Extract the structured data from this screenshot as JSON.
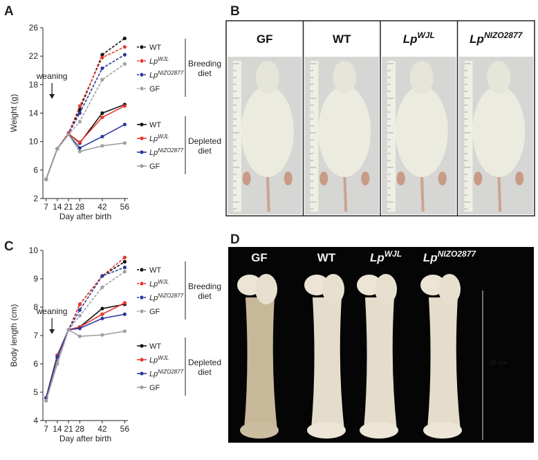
{
  "chart_data": [
    {
      "type": "line",
      "panel_label": "A",
      "y_label": "Weight (g)",
      "x_label": "Day after birth",
      "annotation": "weaning",
      "x": [
        7,
        14,
        21,
        28,
        42,
        56
      ],
      "xlim": [
        5,
        58
      ],
      "xticks": [
        7,
        14,
        21,
        28,
        42,
        56
      ],
      "ylim": [
        2,
        26
      ],
      "yticks": [
        2,
        6,
        10,
        14,
        18,
        22,
        26
      ],
      "legend_groups": [
        {
          "label_lines": [
            "Breeding",
            "diet"
          ]
        },
        {
          "label_lines": [
            "Depleted",
            "diet"
          ]
        }
      ],
      "series": [
        {
          "name": "WT",
          "color": "#111111",
          "dashed": true,
          "values": [
            4.7,
            9.0,
            11.2,
            14.5,
            22.2,
            24.5
          ]
        },
        {
          "name": "Lp",
          "name_sup": "WJL",
          "color": "#e8372c",
          "dashed": true,
          "values": [
            4.7,
            9.0,
            11.2,
            15.0,
            21.8,
            23.3
          ]
        },
        {
          "name": "Lp",
          "name_sup": "NIZO2877",
          "color": "#2b3a9c",
          "dashed": true,
          "values": [
            4.7,
            9.0,
            11.1,
            14.0,
            20.3,
            22.2
          ]
        },
        {
          "name": "GF",
          "color": "#a0a0a0",
          "dashed": true,
          "values": [
            4.7,
            9.0,
            11.0,
            12.8,
            18.7,
            20.9
          ]
        },
        {
          "name": "WT",
          "color": "#111111",
          "dashed": false,
          "values": [
            4.7,
            9.0,
            11.1,
            9.8,
            14.0,
            15.2
          ]
        },
        {
          "name": "Lp",
          "name_sup": "WJL",
          "color": "#e8372c",
          "dashed": false,
          "values": [
            4.7,
            9.0,
            11.1,
            9.9,
            13.4,
            15.0
          ]
        },
        {
          "name": "Lp",
          "name_sup": "NIZO2877",
          "color": "#2b3a9c",
          "dashed": false,
          "values": [
            4.7,
            9.0,
            11.0,
            9.1,
            10.7,
            12.4
          ]
        },
        {
          "name": "GF",
          "color": "#a0a0a0",
          "dashed": false,
          "values": [
            4.7,
            9.0,
            11.0,
            8.6,
            9.4,
            9.8
          ]
        }
      ]
    },
    {
      "type": "line",
      "panel_label": "C",
      "y_label": "Body length (cm)",
      "x_label": "Day after birth",
      "annotation": "weaning",
      "x": [
        7,
        14,
        21,
        28,
        42,
        56
      ],
      "xlim": [
        5,
        58
      ],
      "xticks": [
        7,
        14,
        21,
        28,
        42,
        56
      ],
      "ylim": [
        4,
        10
      ],
      "yticks": [
        4,
        5,
        6,
        7,
        8,
        9,
        10
      ],
      "legend_groups": [
        {
          "label_lines": [
            "Breeding",
            "diet"
          ]
        },
        {
          "label_lines": [
            "Depleted",
            "diet"
          ]
        }
      ],
      "series": [
        {
          "name": "WT",
          "color": "#111111",
          "dashed": true,
          "values": [
            4.8,
            6.3,
            7.2,
            8.1,
            9.1,
            9.6
          ]
        },
        {
          "name": "Lp",
          "name_sup": "WJL",
          "color": "#e8372c",
          "dashed": true,
          "values": [
            4.8,
            6.3,
            7.2,
            8.1,
            9.1,
            9.75
          ]
        },
        {
          "name": "Lp",
          "name_sup": "NIZO2877",
          "color": "#2b3a9c",
          "dashed": true,
          "values": [
            4.8,
            6.2,
            7.2,
            7.9,
            9.1,
            9.4
          ]
        },
        {
          "name": "GF",
          "color": "#a0a0a0",
          "dashed": true,
          "values": [
            4.7,
            6.1,
            7.2,
            7.7,
            8.7,
            9.25
          ]
        },
        {
          "name": "WT",
          "color": "#111111",
          "dashed": false,
          "values": [
            4.8,
            6.3,
            7.2,
            7.3,
            7.95,
            8.1
          ]
        },
        {
          "name": "Lp",
          "name_sup": "WJL",
          "color": "#e8372c",
          "dashed": false,
          "values": [
            4.8,
            6.3,
            7.2,
            7.3,
            7.75,
            8.15
          ]
        },
        {
          "name": "Lp",
          "name_sup": "NIZO2877",
          "color": "#2b3a9c",
          "dashed": false,
          "values": [
            4.8,
            6.25,
            7.2,
            7.25,
            7.6,
            7.75
          ]
        },
        {
          "name": "GF",
          "color": "#a0a0a0",
          "dashed": false,
          "values": [
            4.7,
            6.0,
            7.2,
            6.97,
            7.02,
            7.15
          ]
        }
      ]
    }
  ],
  "photo_panels": [
    {
      "panel_label": "B",
      "labels": [
        {
          "base": "GF"
        },
        {
          "base": "WT"
        },
        {
          "base": "Lp",
          "sup": "WJL"
        },
        {
          "base": "Lp",
          "sup": "NIZO2877"
        }
      ]
    },
    {
      "panel_label": "D",
      "labels": [
        {
          "base": "GF"
        },
        {
          "base": "WT"
        },
        {
          "base": "Lp",
          "sup": "WJL"
        },
        {
          "base": "Lp",
          "sup": "NIZO2877"
        }
      ],
      "scale_label": "10 mm"
    }
  ]
}
